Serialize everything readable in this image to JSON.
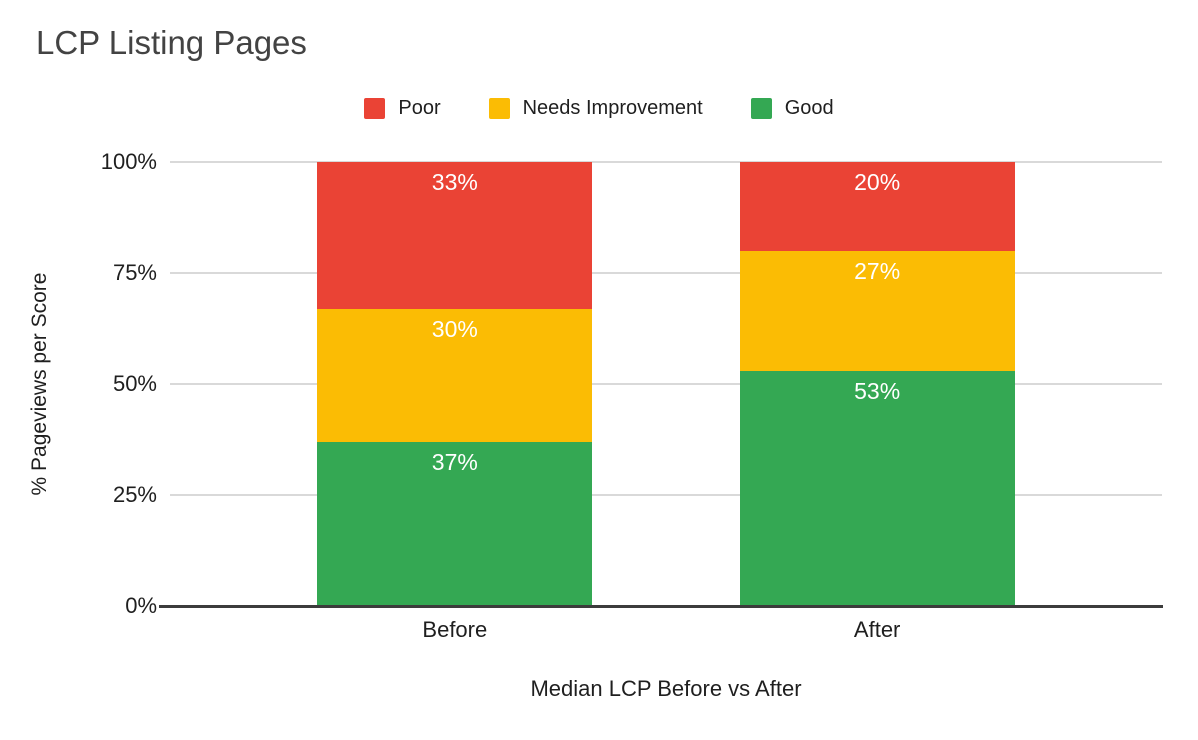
{
  "chart_data": {
    "type": "bar",
    "stacked": true,
    "title": "LCP Listing Pages",
    "xlabel": "Median LCP Before vs After",
    "ylabel": "% Pageviews per Score",
    "categories": [
      "Before",
      "After"
    ],
    "series": [
      {
        "name": "Good",
        "color": "#34A853",
        "values": [
          37,
          53
        ],
        "labels": [
          "37%",
          "53%"
        ]
      },
      {
        "name": "Needs Improvement",
        "color": "#FBBC04",
        "values": [
          30,
          27
        ],
        "labels": [
          "30%",
          "27%"
        ]
      },
      {
        "name": "Poor",
        "color": "#EA4335",
        "values": [
          33,
          20
        ],
        "labels": [
          "33%",
          "20%"
        ]
      }
    ],
    "legend_position": "top",
    "legend_order_note": "Poor, Needs Improvement, Good (left to right)",
    "y_ticks": [
      {
        "value": 0,
        "label": "0%"
      },
      {
        "value": 25,
        "label": "25%"
      },
      {
        "value": 50,
        "label": "50%"
      },
      {
        "value": 75,
        "label": "75%"
      },
      {
        "value": 100,
        "label": "100%"
      }
    ],
    "ylim": [
      0,
      100
    ],
    "grid": true,
    "palette": {
      "poor_red": "#EA4335",
      "needs_improvement_yellow": "#FBBC04",
      "good_green": "#34A853",
      "gridline_gray": "#D9D9D9",
      "axis_dark": "#3C3C3C",
      "title_gray": "#434343"
    }
  }
}
